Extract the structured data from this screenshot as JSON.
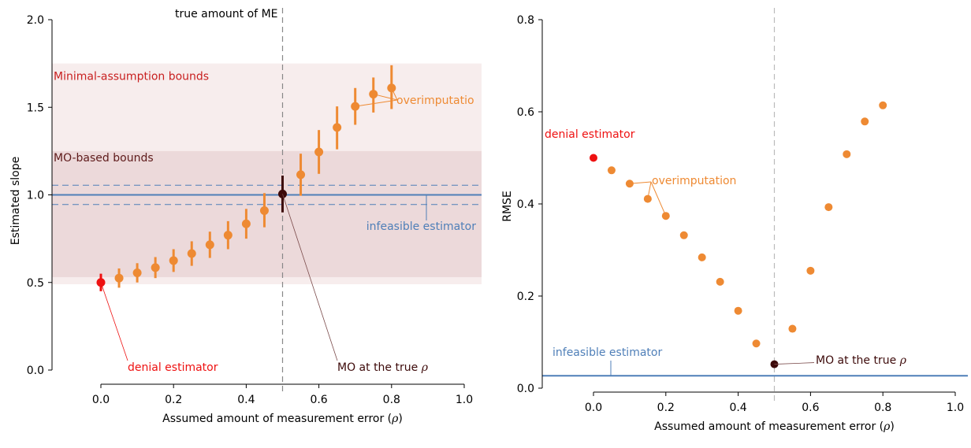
{
  "colors": {
    "orange": "#ee8a33",
    "red": "#ee1111",
    "dark": "#3d0a0a",
    "blue": "#4f7fb8",
    "band_outer": "#f7eded",
    "band_inner": "#ecd9da",
    "label_dark_red": "#c82020",
    "label_mo_bounds": "#5e1a1a",
    "axis": "#000000",
    "ref_line": "#888888",
    "ref_line_right": "#bbbbbb"
  },
  "chart_data": [
    {
      "type": "scatter",
      "title": "",
      "xlabel": "Assumed amount of measurement error (",
      "xlabel_symbol": "ρ",
      "xlabel_close": ")",
      "ylabel": "Estimated slope",
      "xlim": [
        -0.15,
        1.05
      ],
      "ylim": [
        -0.05,
        2.05
      ],
      "xticks": [
        0.0,
        0.2,
        0.4,
        0.6,
        0.8,
        1.0
      ],
      "xtick_labels": [
        "0.0",
        "0.2",
        "0.4",
        "0.6",
        "0.8",
        "1.0"
      ],
      "yticks": [
        0.0,
        0.5,
        1.0,
        1.5,
        2.0
      ],
      "ytick_labels": [
        "0.0",
        "0.5",
        "1.0",
        "1.5",
        "2.0"
      ],
      "grid": false,
      "bands": [
        {
          "label": "Minimal-assumption bounds",
          "ymin": 0.49,
          "ymax": 1.75
        },
        {
          "label": "MO-based bounds",
          "ymin": 0.53,
          "ymax": 1.25
        }
      ],
      "reference_line": {
        "label": "true amount of ME",
        "x": 0.5
      },
      "infeasible_estimator": {
        "label": "infeasible estimator",
        "y": 1.0,
        "ci": [
          0.945,
          1.055
        ]
      },
      "denial_estimator": {
        "label": "denial estimator",
        "x": 0.0,
        "y": 0.5,
        "ci": [
          0.45,
          0.55
        ]
      },
      "mo_true": {
        "label": "MO at the true",
        "label_symbol": "ρ",
        "x": 0.5,
        "y": 1.005,
        "ci": [
          0.9,
          1.11
        ]
      },
      "overimputation": {
        "label": "overimputatio",
        "x": [
          0.05,
          0.1,
          0.15,
          0.2,
          0.25,
          0.3,
          0.35,
          0.4,
          0.45,
          0.55,
          0.6,
          0.65,
          0.7,
          0.75,
          0.8
        ],
        "y": [
          0.525,
          0.555,
          0.585,
          0.625,
          0.665,
          0.715,
          0.77,
          0.835,
          0.91,
          1.115,
          1.245,
          1.385,
          1.505,
          1.575,
          1.61
        ],
        "lo": [
          0.47,
          0.5,
          0.525,
          0.56,
          0.595,
          0.64,
          0.69,
          0.75,
          0.815,
          0.995,
          1.12,
          1.26,
          1.4,
          1.47,
          1.49
        ],
        "hi": [
          0.58,
          0.61,
          0.645,
          0.69,
          0.735,
          0.79,
          0.85,
          0.92,
          1.01,
          1.235,
          1.37,
          1.505,
          1.61,
          1.67,
          1.74
        ]
      }
    },
    {
      "type": "scatter",
      "title": "",
      "xlabel": "Assumed amount of measurement error (",
      "xlabel_symbol": "ρ",
      "xlabel_close": ")",
      "ylabel": "RMSE",
      "xlim": [
        -0.15,
        1.05
      ],
      "ylim": [
        -0.02,
        0.82
      ],
      "xticks": [
        0.0,
        0.2,
        0.4,
        0.6,
        0.8,
        1.0
      ],
      "xtick_labels": [
        "0.0",
        "0.2",
        "0.4",
        "0.6",
        "0.8",
        "1.0"
      ],
      "yticks": [
        0.0,
        0.2,
        0.4,
        0.6,
        0.8
      ],
      "ytick_labels": [
        "0.0",
        "0.2",
        "0.4",
        "0.6",
        "0.8"
      ],
      "grid": false,
      "reference_line": {
        "x": 0.5
      },
      "infeasible_estimator": {
        "label": "infeasible estimator",
        "y": 0.027
      },
      "denial_estimator": {
        "label": "denial estimator",
        "x": 0.0,
        "y": 0.5
      },
      "mo_true": {
        "label": "MO at the true",
        "label_symbol": "ρ",
        "x": 0.5,
        "y": 0.052
      },
      "overimputation": {
        "label": "overimputation",
        "x": [
          0.05,
          0.1,
          0.15,
          0.2,
          0.25,
          0.3,
          0.35,
          0.4,
          0.45,
          0.55,
          0.6,
          0.65,
          0.7,
          0.75,
          0.8
        ],
        "y": [
          0.473,
          0.444,
          0.411,
          0.374,
          0.332,
          0.284,
          0.231,
          0.168,
          0.097,
          0.129,
          0.255,
          0.393,
          0.508,
          0.579,
          0.614
        ]
      }
    }
  ]
}
